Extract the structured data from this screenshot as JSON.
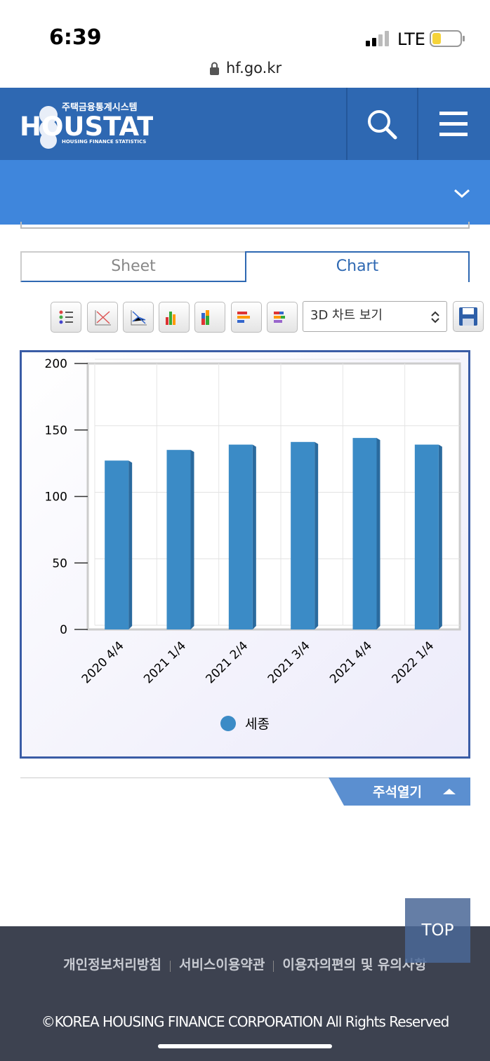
{
  "status_bar": {
    "time": "6:39",
    "network": "LTE"
  },
  "url": "hf.go.kr",
  "header": {
    "logo": "HOUSTAT",
    "logo_subtitle_ko": "주택금융통계시스템",
    "logo_subtitle_en": "HOUSING FINANCE STATISTICS"
  },
  "tabs": [
    "Sheet",
    "Chart"
  ],
  "chart_view_select": "3D 차트 보기",
  "chart_data": {
    "type": "bar",
    "categories": [
      "2020 4/4",
      "2021 1/4",
      "2021 2/4",
      "2021 3/4",
      "2021 4/4",
      "2022 1/4"
    ],
    "series": [
      {
        "name": "세종",
        "color": "#3b8bc6",
        "values": [
          127,
          135,
          139,
          141,
          144,
          139
        ]
      }
    ],
    "ylim": [
      0,
      200
    ],
    "yticks": [
      0,
      50,
      100,
      150,
      200
    ],
    "grid": true,
    "legend": "bottom"
  },
  "notes_toggle": "주석열기",
  "top_button": "TOP",
  "footer": {
    "links": [
      "개인정보처리방침",
      "서비스이용약관",
      "이용자의편의 및 유의사항"
    ],
    "copyright": "©KOREA HOUSING FINANCE CORPORATION All Rights Reserved"
  }
}
